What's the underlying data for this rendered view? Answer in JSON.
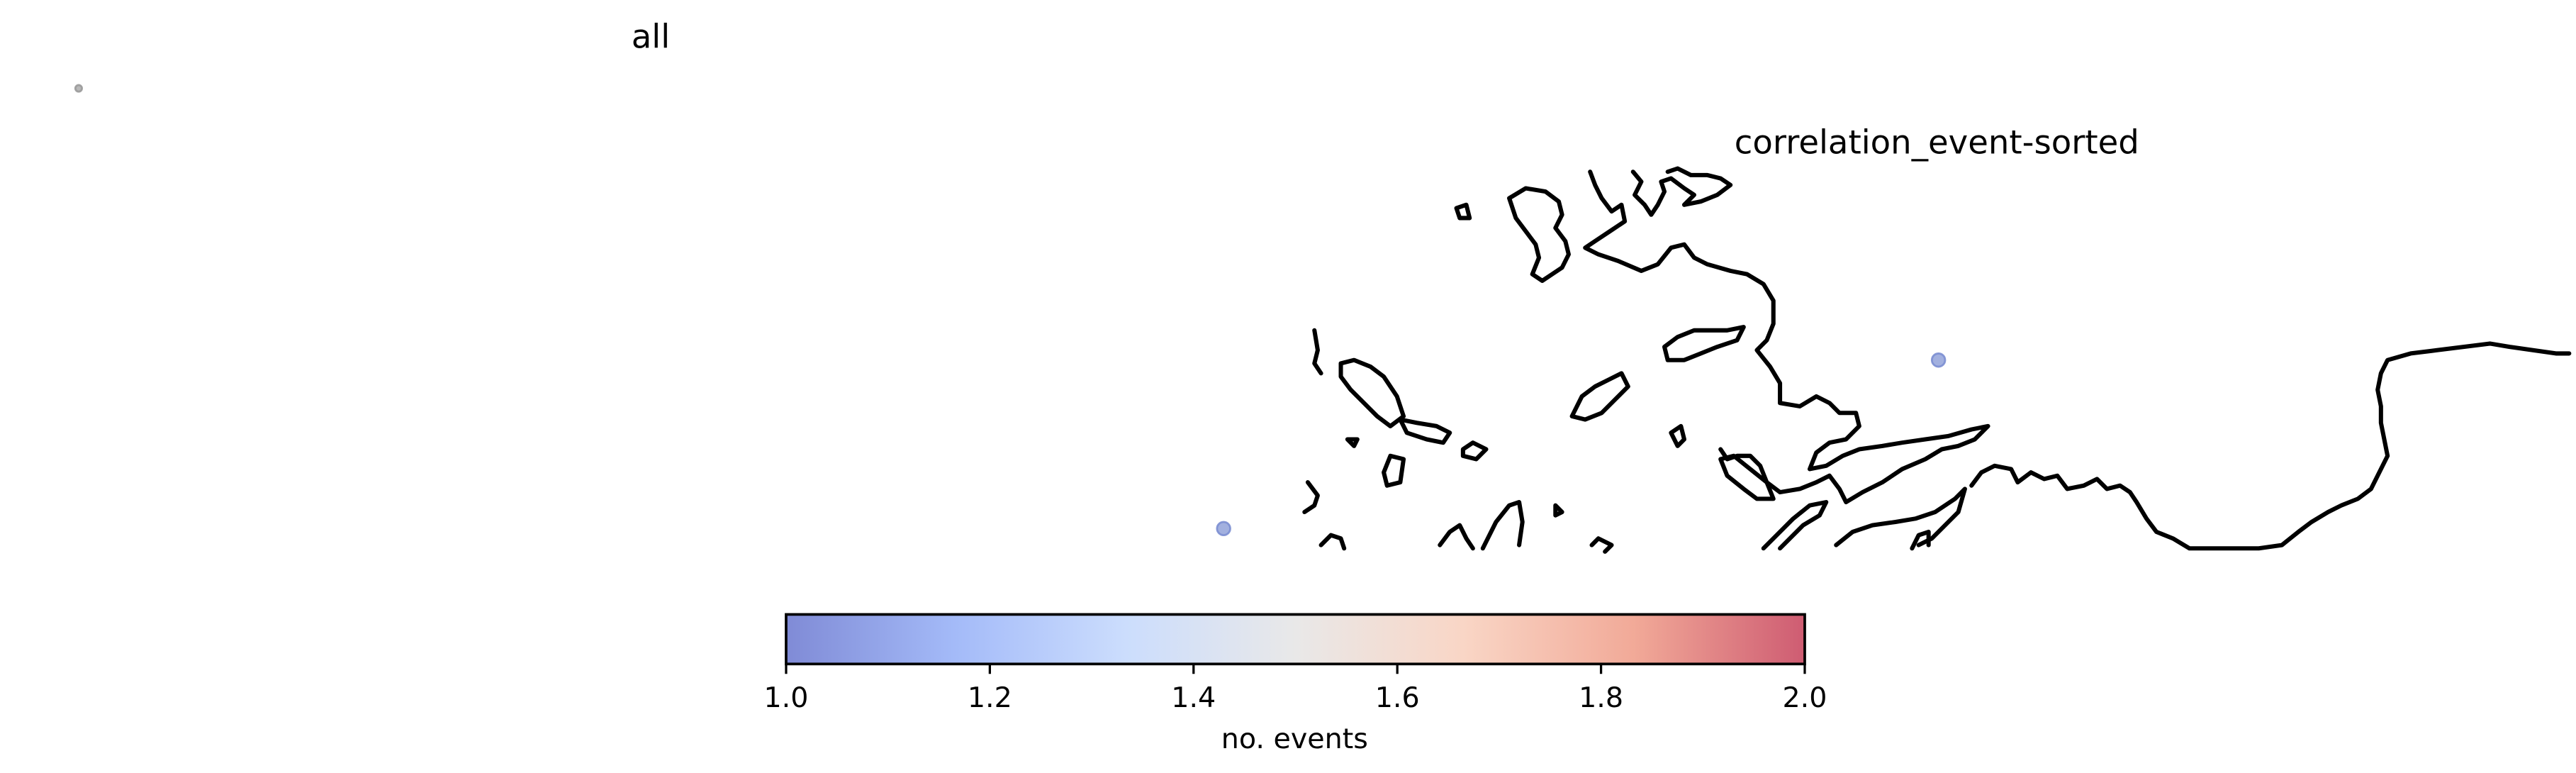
{
  "panels": {
    "left_title": "all",
    "right_title": "correlation_event-sorted"
  },
  "map": {
    "coastline_color": "#000000",
    "marker_alpha": 0.7
  },
  "points": [
    {
      "panel": "all",
      "no_events": 1.0,
      "color": "#9a9a9a"
    },
    {
      "panel": "correlation_event-sorted",
      "no_events": 1.0,
      "color": "#7b8ed2"
    },
    {
      "panel": "correlation_event-sorted",
      "no_events": 1.0,
      "color": "#7b8ed2"
    }
  ],
  "colorbar": {
    "label": "no. events",
    "colormap": "coolwarm",
    "vmin": 1.0,
    "vmax": 2.0,
    "ticks": [
      "1.0",
      "1.2",
      "1.4",
      "1.6",
      "1.8",
      "2.0"
    ],
    "stops": [
      "#3b4cc0",
      "#7396f5",
      "#b0cbfc",
      "#dddcdc",
      "#f6bfa6",
      "#ea7b60",
      "#b40426"
    ],
    "alpha": 0.65
  }
}
